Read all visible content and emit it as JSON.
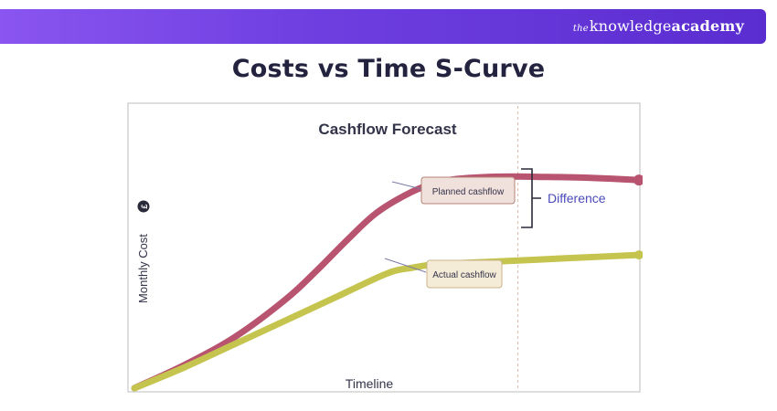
{
  "header": {
    "brand_the": "the",
    "brand_knowledge": "knowledge",
    "brand_academy": "academy"
  },
  "page_title": "Costs vs Time S-Curve",
  "chart_data": {
    "type": "line",
    "title": "Cashflow Forecast",
    "xlabel": "Timeline",
    "ylabel": "Monthly Cost",
    "ylabel_badge": "£",
    "xlim": [
      0,
      100
    ],
    "ylim": [
      0,
      100
    ],
    "grid": false,
    "marker_x": 76,
    "series": [
      {
        "name": "Planned cashflow",
        "color": "#b85470",
        "x": [
          0,
          10,
          20,
          30,
          36,
          42,
          48,
          55,
          60,
          64,
          70,
          76,
          82,
          90,
          100
        ],
        "y": [
          0,
          10,
          22,
          38,
          50,
          63,
          75,
          84,
          88,
          89.5,
          90.3,
          90.5,
          90.3,
          90,
          89
        ]
      },
      {
        "name": "Actual cashflow",
        "color": "#c5c44e",
        "x": [
          0,
          10,
          20,
          30,
          40,
          50,
          55,
          60,
          70,
          80,
          90,
          100
        ],
        "y": [
          0,
          9,
          19,
          29,
          39,
          49,
          51.5,
          53,
          54,
          55,
          56,
          57
        ]
      }
    ],
    "annotations": {
      "planned_label": "Planned cashflow",
      "actual_label": "Actual cashflow",
      "difference_label": "Difference"
    }
  }
}
